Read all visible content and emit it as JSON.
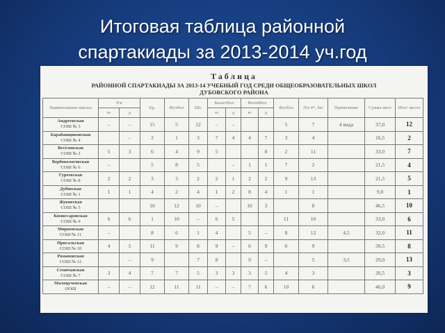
{
  "slide_title": [
    "Итоговая таблица районной",
    "спартакиады за 2013-2014 уч.год"
  ],
  "document": {
    "heading": "Таблица",
    "subheading": [
      "РАЙОННОЙ СПАРТАКИАДЫ ЗА 2013-14 УЧЕБНЫЙ ГОД СРЕДИ ОБЩЕОБРАЗОВАТЕЛЬНЫХ ШКОЛ",
      "ДУБОВСКОГО РАЙОНА"
    ],
    "headers": {
      "school": "Наименование школы",
      "rk": "Р/к",
      "kr": "Кр.",
      "football": "Футбол",
      "sht": "Шт.",
      "basketball": "Баскетбол",
      "volleyball": "Волейбол",
      "football2": "Футбол",
      "la": "Л/а 4*, бег",
      "note": "Примечание",
      "sum": "Сумма мест",
      "place": "Итог. место",
      "yu": "ю",
      "d": "д"
    },
    "rows": [
      {
        "name": "Андреевская",
        "sub": "СОШ № 3",
        "v": [
          "–",
          "–",
          "15",
          "5",
          "12",
          "–",
          "–",
          "",
          "",
          "5",
          "7",
          "4 вида",
          "37,0",
          "12"
        ]
      },
      {
        "name": "Барабанщиковская",
        "sub": "СОШ № 4",
        "v": [
          "",
          "–",
          "2",
          "1",
          "3",
          "7",
          "4",
          "4",
          "7",
          "3",
          "4",
          "",
          "16,5",
          "2"
        ]
      },
      {
        "name": "Весёловская",
        "sub": "СОШ № 2",
        "v": [
          "5",
          "3",
          "6",
          "4",
          "9",
          "5",
          "",
          "",
          "8",
          "2",
          "11",
          "",
          "33,0",
          "7"
        ]
      },
      {
        "name": "Вербовологовская",
        "sub": "СОШ № 6",
        "v": [
          "–",
          "",
          "5",
          "8",
          "5",
          "",
          "–",
          "1",
          "1",
          "7",
          "2",
          "",
          "21,5",
          "4"
        ]
      },
      {
        "name": "Гуреевская",
        "sub": "СОШ № 8",
        "v": [
          "2",
          "2",
          "3",
          "3",
          "2",
          "2",
          "1",
          "2",
          "2",
          "9",
          "13",
          "",
          "21,5",
          "5"
        ]
      },
      {
        "name": "Дубовская",
        "sub": "СОШ № 1",
        "v": [
          "1",
          "1",
          "4",
          "2",
          "4",
          "1",
          "2",
          "8",
          "4",
          "1",
          "1",
          "",
          "9,0",
          "1"
        ]
      },
      {
        "name": "Жуковская",
        "sub": "СОШ № 5",
        "v": [
          "",
          "",
          "10",
          "12",
          "10",
          "–",
          "",
          "10",
          "3",
          "",
          "8",
          "",
          "46,5",
          "10"
        ]
      },
      {
        "name": "Комиссаровская",
        "sub": "СОШ № 9",
        "v": [
          "6",
          "6",
          "1",
          "10",
          "–",
          "6",
          "5",
          "",
          "",
          "11",
          "10",
          "",
          "33,0",
          "6"
        ]
      },
      {
        "name": "Мирненская",
        "sub": "СОШ № 11",
        "v": [
          "–",
          "",
          "8",
          "6",
          "1",
          "4",
          "",
          "5",
          "–",
          "8",
          "12",
          "4,5",
          "32,0",
          "11"
        ]
      },
      {
        "name": "Присальская",
        "sub": "СОШ № 10",
        "v": [
          "4",
          "5",
          "11",
          "9",
          "8",
          "9",
          "–",
          "6",
          "9",
          "6",
          "9",
          "",
          "39,5",
          "8"
        ]
      },
      {
        "name": "Романовская",
        "sub": "СОШ № 12",
        "v": [
          "",
          "–",
          "9",
          "",
          "7",
          "8",
          "",
          "9",
          "–",
          "",
          "5",
          "3,5",
          "29,0",
          "13"
        ]
      },
      {
        "name": "Семичанская",
        "sub": "СОШ № 7",
        "v": [
          "3",
          "4",
          "7",
          "7",
          "5",
          "3",
          "3",
          "3",
          "5",
          "4",
          "3",
          "",
          "20,5",
          "3"
        ]
      },
      {
        "name": "Малоцученская",
        "sub": "ООШ",
        "v": [
          "–",
          "–",
          "12",
          "11",
          "11",
          "–",
          "–",
          "7",
          "6",
          "10",
          "6",
          "",
          "46,0",
          "9"
        ]
      }
    ]
  }
}
